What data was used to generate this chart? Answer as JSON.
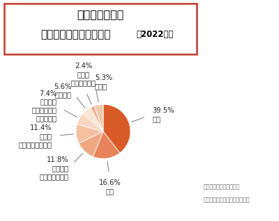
{
  "title_line1": "発生場所ごとの",
  "title_line2": "熱中症救急搬送者の割合",
  "title_year": "（2022年）",
  "credit_line1": "提供：日本気象協会推進",
  "credit_line2": "「熱中症ゼロへ」プロジェクト",
  "slices": [
    {
      "pct": 39.5,
      "color": "#D95B28",
      "name": "住居",
      "pct_str": "39.5%"
    },
    {
      "pct": 16.6,
      "color": "#E8835A",
      "name": "道路",
      "pct_str": "16.6%"
    },
    {
      "pct": 11.8,
      "color": "#F0A882",
      "name": "公衆屋外\n（競技場など）",
      "pct_str": "11.8%"
    },
    {
      "pct": 11.4,
      "color": "#F4C0A0",
      "name": "仕事場\n（工事現場など）",
      "pct_str": "11.4%"
    },
    {
      "pct": 7.4,
      "color": "#F7D5BE",
      "name": "公衆屋内\n（コンサート\n会場など）",
      "pct_str": "7.4%"
    },
    {
      "pct": 5.6,
      "color": "#FAE5D4",
      "name": "教育機関",
      "pct_str": "5.6%"
    },
    {
      "pct": 2.4,
      "color": "#F0AE8C",
      "name": "仕事場\n（田畑など）",
      "pct_str": "2.4%"
    },
    {
      "pct": 5.3,
      "color": "#EDCAAC",
      "name": "その他",
      "pct_str": "5.3%"
    }
  ],
  "bg_color": "#FFFFFF",
  "border_color": "#C0392B"
}
